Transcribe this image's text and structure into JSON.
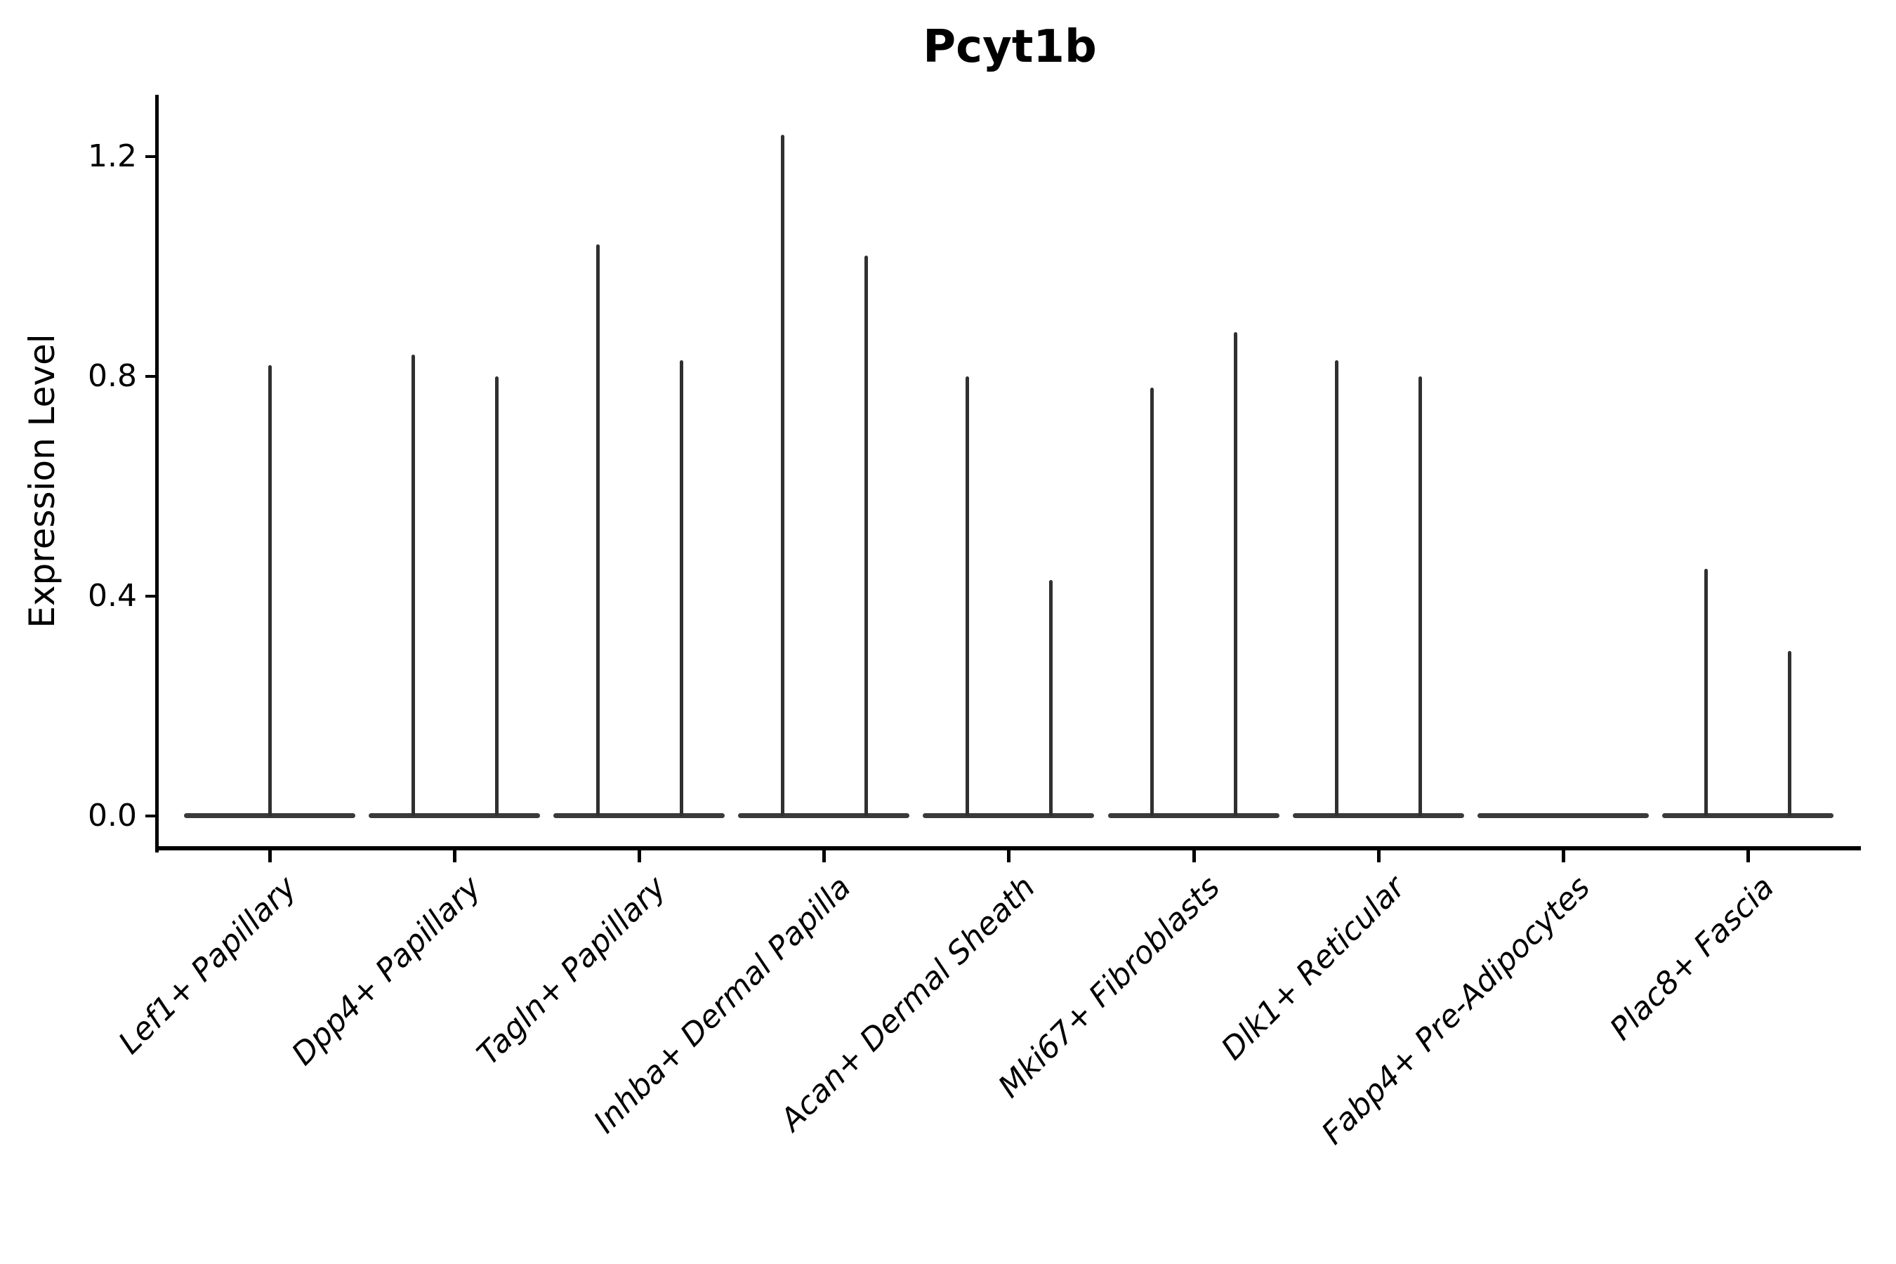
{
  "chart_data": {
    "type": "violin",
    "title": "Pcyt1b",
    "ylabel": "Expression Level",
    "xlabel": "",
    "ylim": [
      0,
      1.29
    ],
    "yticks": [
      1.2,
      0.8,
      0.4,
      0.0
    ],
    "ytick_labels": [
      "1.2",
      "0.8",
      "0.4",
      "0.0"
    ],
    "grid": false,
    "legend_position": "none",
    "baseline_value": 0.0,
    "categories": [
      "Lef1+ Papillary",
      "Dpp4+ Papillary",
      "Tagln+ Papillary",
      "Inhba+ Dermal Papilla",
      "Acan+ Dermal Sheath",
      "Mki67+ Fibroblasts",
      "Dlk1+ Reticular",
      "Fabp4+ Pre-Adipocytes",
      "Plac8+ Fascia"
    ],
    "violins": [
      {
        "category": "Lef1+ Papillary",
        "spikes": [
          {
            "slot": "center",
            "max": 0.82
          }
        ]
      },
      {
        "category": "Dpp4+ Papillary",
        "spikes": [
          {
            "slot": "left",
            "max": 0.84
          },
          {
            "slot": "right",
            "max": 0.8
          }
        ]
      },
      {
        "category": "Tagln+ Papillary",
        "spikes": [
          {
            "slot": "left",
            "max": 1.04
          },
          {
            "slot": "right",
            "max": 0.83
          }
        ]
      },
      {
        "category": "Inhba+ Dermal Papilla",
        "spikes": [
          {
            "slot": "left",
            "max": 1.24
          },
          {
            "slot": "right",
            "max": 1.02
          }
        ]
      },
      {
        "category": "Acan+ Dermal Sheath",
        "spikes": [
          {
            "slot": "left",
            "max": 0.8
          },
          {
            "slot": "right",
            "max": 0.43
          }
        ]
      },
      {
        "category": "Mki67+ Fibroblasts",
        "spikes": [
          {
            "slot": "left",
            "max": 0.78
          },
          {
            "slot": "right",
            "max": 0.88
          }
        ]
      },
      {
        "category": "Dlk1+ Reticular",
        "spikes": [
          {
            "slot": "left",
            "max": 0.83
          },
          {
            "slot": "right",
            "max": 0.8
          }
        ]
      },
      {
        "category": "Fabp4+ Pre-Adipocytes",
        "spikes": []
      },
      {
        "category": "Plac8+ Fascia",
        "spikes": [
          {
            "slot": "left",
            "max": 0.45
          },
          {
            "slot": "right",
            "max": 0.3
          }
        ]
      }
    ],
    "colors": {
      "violin_body": "#3a3a3a",
      "spike": "#303030",
      "axis": "#000000",
      "text": "#000000",
      "background": "#ffffff"
    }
  }
}
